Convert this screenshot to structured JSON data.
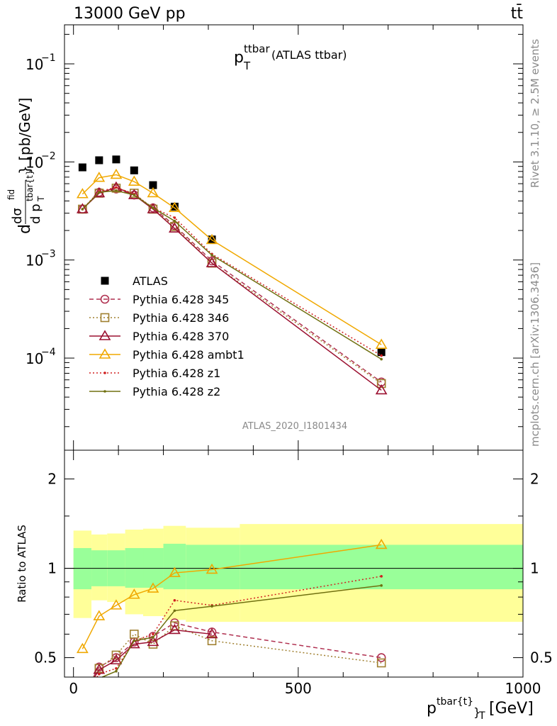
{
  "header": {
    "energy_label": "13000 GeV pp",
    "process_label": "tt̄"
  },
  "plot_title": {
    "main": "p",
    "sub": "T",
    "sup": "ttbar",
    "suffix": "(ATLAS ttbar)"
  },
  "side_labels": {
    "rivet": "Rivet 3.1.10, ≥ 2.5M events",
    "mcplots": "mcplots.cern.ch [arXiv:1306.3436]"
  },
  "watermark": "ATLAS_2020_I1801434",
  "axes": {
    "ylabel_main": {
      "d1": "d",
      "frac_num": "dσ",
      "frac_num_sup": "fid",
      "frac_den": "d p",
      "frac_den_sup": "tbar{t}",
      "frac_den_sub": "T",
      "unit": "} [pb/GeV]"
    },
    "ylabel_ratio": "Ratio to ATLAS",
    "xlabel": {
      "main": "p",
      "sup": "tbar{t}",
      "sub": "}",
      "sub2": "T",
      "unit": "[GeV]"
    },
    "x_tick_labels": [
      "0",
      "500",
      "1000"
    ],
    "y_main_tick_labels": [
      {
        "base": "10",
        "exp": "−1"
      },
      {
        "base": "10",
        "exp": "−2"
      },
      {
        "base": "10",
        "exp": "−3"
      },
      {
        "base": "10",
        "exp": "−4"
      }
    ],
    "y_ratio_tick_labels": [
      "0.5",
      "1",
      "2"
    ]
  },
  "legend": [
    {
      "label": "ATLAS",
      "color": "#000000",
      "marker": "square",
      "dash": "none"
    },
    {
      "label": "Pythia 6.428 345",
      "color": "#b03050",
      "marker": "circle-open",
      "dash": "dashed"
    },
    {
      "label": "Pythia 6.428 346",
      "color": "#a08030",
      "marker": "square-open",
      "dash": "dotted"
    },
    {
      "label": "Pythia 6.428 370",
      "color": "#9b1030",
      "marker": "triangle-open",
      "dash": "solid"
    },
    {
      "label": "Pythia 6.428 ambt1",
      "color": "#f0a800",
      "marker": "triangle-open",
      "dash": "solid"
    },
    {
      "label": "Pythia 6.428 z1",
      "color": "#d02020",
      "marker": "dot",
      "dash": "dotted"
    },
    {
      "label": "Pythia 6.428 z2",
      "color": "#707010",
      "marker": "dot",
      "dash": "solid"
    }
  ],
  "chart_data": {
    "type": "line",
    "x_scale": "linear",
    "xlim": [
      -20,
      1000
    ],
    "main_panel": {
      "y_scale": "log",
      "ylim": [
        1.15e-05,
        0.25
      ],
      "series": [
        {
          "name": "ATLAS",
          "x": [
            20,
            57,
            95,
            135,
            177,
            225,
            308,
            685
          ],
          "y": [
            0.0088,
            0.0104,
            0.0106,
            0.0082,
            0.0058,
            0.0035,
            0.00162,
            0.000115
          ]
        },
        {
          "name": "Pythia 6.428 345",
          "x": [
            20,
            57,
            95,
            135,
            177,
            225,
            308,
            685
          ],
          "y": [
            0.0033,
            0.0049,
            0.0053,
            0.0046,
            0.0034,
            0.00225,
            0.00098,
            5.7e-05
          ]
        },
        {
          "name": "Pythia 6.428 346",
          "x": [
            20,
            57,
            95,
            135,
            177,
            225,
            308,
            685
          ],
          "y": [
            0.0033,
            0.0048,
            0.0054,
            0.0048,
            0.0033,
            0.0022,
            0.00093,
            5.5e-05
          ]
        },
        {
          "name": "Pythia 6.428 370",
          "x": [
            20,
            57,
            95,
            135,
            177,
            225,
            308,
            685
          ],
          "y": [
            0.0033,
            0.0048,
            0.0055,
            0.0046,
            0.0033,
            0.0021,
            0.00093,
            4.7e-05
          ]
        },
        {
          "name": "Pythia 6.428 ambt1",
          "x": [
            20,
            57,
            95,
            135,
            177,
            225,
            308,
            685
          ],
          "y": [
            0.0047,
            0.0069,
            0.0074,
            0.0063,
            0.0048,
            0.0034,
            0.0016,
            0.000137
          ]
        },
        {
          "name": "Pythia 6.428 z1",
          "x": [
            20,
            57,
            95,
            135,
            177,
            225,
            308,
            685
          ],
          "y": [
            0.0033,
            0.005,
            0.0055,
            0.0047,
            0.0034,
            0.0027,
            0.00115,
            0.000106
          ]
        },
        {
          "name": "Pythia 6.428 z2",
          "x": [
            20,
            57,
            95,
            135,
            177,
            225,
            308,
            685
          ],
          "y": [
            0.0033,
            0.0049,
            0.0051,
            0.0046,
            0.0034,
            0.0025,
            0.00112,
            9.75e-05
          ]
        }
      ]
    },
    "ratio_panel": {
      "y_scale": "log",
      "ylim": [
        0.43,
        2.5
      ],
      "bin_edges": [
        0,
        40,
        75,
        115,
        155,
        200,
        250,
        370,
        1000
      ],
      "band_inner": {
        "lo": [
          0.85,
          0.87,
          0.87,
          0.86,
          0.86,
          0.85,
          0.85,
          0.85
        ],
        "hi": [
          1.17,
          1.15,
          1.15,
          1.17,
          1.17,
          1.21,
          1.2,
          1.2
        ]
      },
      "band_outer": {
        "lo": [
          0.68,
          0.78,
          0.77,
          0.7,
          0.69,
          0.67,
          0.66,
          0.66
        ],
        "hi": [
          1.34,
          1.3,
          1.31,
          1.35,
          1.36,
          1.39,
          1.37,
          1.41
        ]
      },
      "series": [
        {
          "name": "Pythia 6.428 345",
          "x": [
            20,
            57,
            95,
            135,
            177,
            225,
            308,
            685
          ],
          "y": [
            0.37,
            0.465,
            0.5,
            0.565,
            0.59,
            0.655,
            0.61,
            0.5
          ]
        },
        {
          "name": "Pythia 6.428 346",
          "x": [
            20,
            57,
            95,
            135,
            177,
            225,
            308,
            685
          ],
          "y": [
            0.37,
            0.46,
            0.51,
            0.6,
            0.555,
            0.64,
            0.57,
            0.48
          ]
        },
        {
          "name": "Pythia 6.428 370",
          "x": [
            20,
            57,
            95,
            135,
            177,
            225,
            308,
            685
          ],
          "y": [
            0.37,
            0.455,
            0.49,
            0.555,
            0.565,
            0.62,
            0.6,
            0.405
          ]
        },
        {
          "name": "Pythia 6.428 ambt1",
          "x": [
            20,
            57,
            95,
            135,
            177,
            225,
            308,
            685
          ],
          "y": [
            0.535,
            0.69,
            0.75,
            0.815,
            0.855,
            0.965,
            0.99,
            1.2
          ]
        },
        {
          "name": "Pythia 6.428 z1",
          "x": [
            20,
            57,
            95,
            135,
            177,
            225,
            308,
            685
          ],
          "y": [
            0.37,
            0.44,
            0.46,
            0.57,
            0.6,
            0.78,
            0.75,
            0.94
          ]
        },
        {
          "name": "Pythia 6.428 z2",
          "x": [
            20,
            57,
            95,
            135,
            177,
            225,
            308,
            685
          ],
          "y": [
            0.37,
            0.42,
            0.45,
            0.57,
            0.585,
            0.72,
            0.745,
            0.875
          ]
        }
      ],
      "reference_line": 1
    }
  }
}
